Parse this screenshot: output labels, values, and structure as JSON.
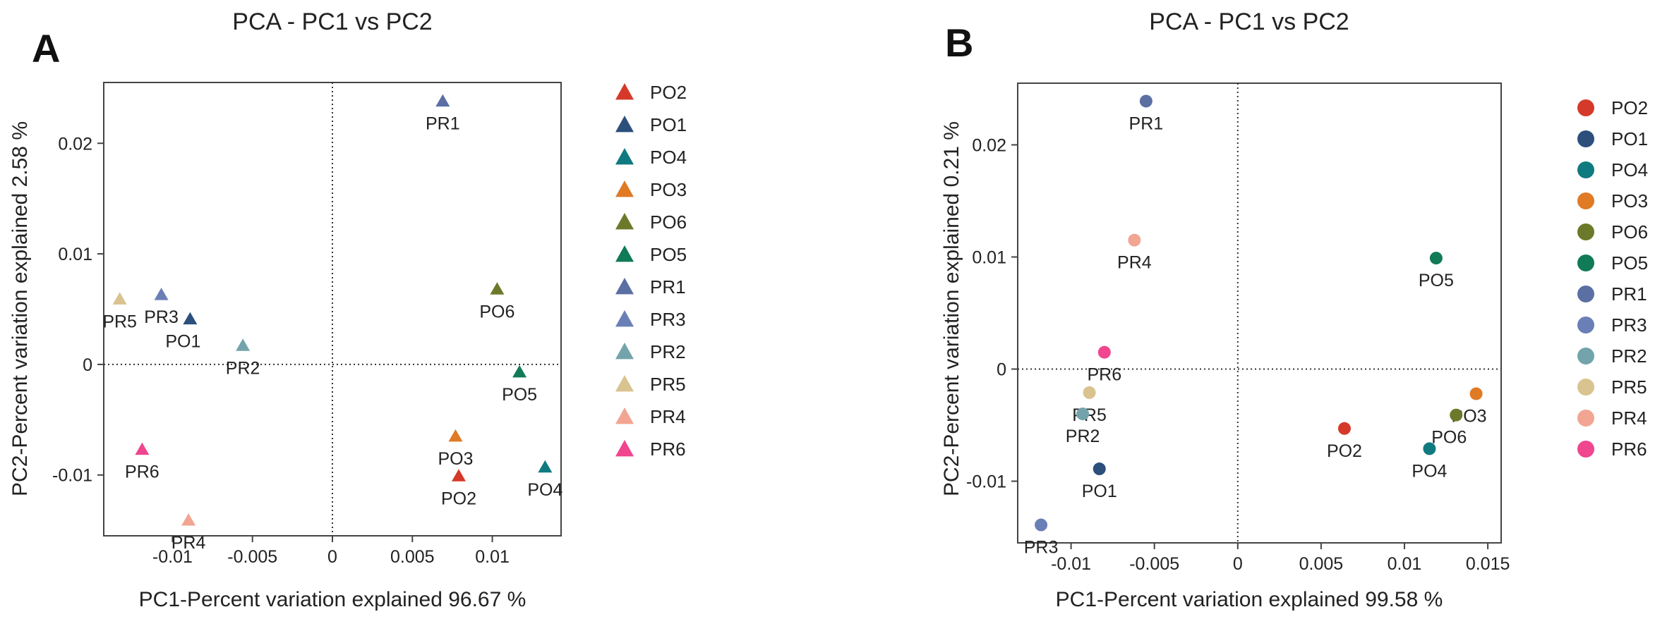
{
  "chart_data": [
    {
      "panel_label": "A",
      "type": "scatter",
      "marker": "triangle",
      "title": "PCA - PC1 vs PC2",
      "xlabel": "PC1-Percent variation explained 96.67 %",
      "ylabel": "PC2-Percent variation explained 2.58 %",
      "xlim": [
        -0.0143,
        0.0143
      ],
      "ylim": [
        -0.0155,
        0.0255
      ],
      "x_ticks": [
        -0.01,
        -0.005,
        0,
        0.005,
        0.01
      ],
      "x_tick_labels": [
        "-0.01",
        "-0.005",
        "0",
        "0.005",
        "0.01"
      ],
      "y_ticks": [
        -0.01,
        0,
        0.01,
        0.02
      ],
      "y_tick_labels": [
        "-0.01",
        "0",
        "0.01",
        "0.02"
      ],
      "legend": [
        "PO2",
        "PO1",
        "PO4",
        "PO3",
        "PO6",
        "PO5",
        "PR1",
        "PR3",
        "PR2",
        "PR5",
        "PR4",
        "PR6"
      ],
      "points": [
        {
          "label": "PR1",
          "x": 0.0069,
          "y": 0.0238,
          "color": "#5b6fa3",
          "label_pos": "below"
        },
        {
          "label": "PO6",
          "x": 0.0103,
          "y": 0.0068,
          "color": "#6b7a2a",
          "label_pos": "below"
        },
        {
          "label": "PR5",
          "x": -0.0133,
          "y": 0.0059,
          "color": "#d9c38e",
          "label_pos": "below"
        },
        {
          "label": "PR3",
          "x": -0.0107,
          "y": 0.0063,
          "color": "#6a7fb6",
          "label_pos": "below"
        },
        {
          "label": "PO1",
          "x": -0.0089,
          "y": 0.0041,
          "color": "#2c4f7c",
          "label_pos": "below-left"
        },
        {
          "label": "PR2",
          "x": -0.0056,
          "y": 0.0017,
          "color": "#73a4ab",
          "label_pos": "below"
        },
        {
          "label": "PO5",
          "x": 0.0117,
          "y": -0.0007,
          "color": "#117a56",
          "label_pos": "below"
        },
        {
          "label": "PR6",
          "x": -0.0119,
          "y": -0.0077,
          "color": "#f0458f",
          "label_pos": "below"
        },
        {
          "label": "PO3",
          "x": 0.0077,
          "y": -0.0065,
          "color": "#e07a25",
          "label_pos": "below"
        },
        {
          "label": "PO4",
          "x": 0.0133,
          "y": -0.0093,
          "color": "#0f7a80",
          "label_pos": "below"
        },
        {
          "label": "PO2",
          "x": 0.0079,
          "y": -0.0101,
          "color": "#d5392a",
          "label_pos": "below"
        },
        {
          "label": "PR4",
          "x": -0.009,
          "y": -0.0141,
          "color": "#f2a592",
          "label_pos": "below"
        }
      ]
    },
    {
      "panel_label": "B",
      "type": "scatter",
      "marker": "circle",
      "title": "PCA - PC1 vs PC2",
      "xlabel": "PC1-Percent variation explained 99.58 %",
      "ylabel": "PC2-Percent variation explained 0.21 %",
      "xlim": [
        -0.0132,
        0.0158
      ],
      "ylim": [
        -0.0155,
        0.0255
      ],
      "x_ticks": [
        -0.01,
        -0.005,
        0,
        0.005,
        0.01,
        0.015
      ],
      "x_tick_labels": [
        "-0.01",
        "-0.005",
        "0",
        "0.005",
        "0.01",
        "0.015"
      ],
      "y_ticks": [
        -0.01,
        0,
        0.01,
        0.02
      ],
      "y_tick_labels": [
        "-0.01",
        "0",
        "0.01",
        "0.02"
      ],
      "legend": [
        "PO2",
        "PO1",
        "PO4",
        "PO3",
        "PO6",
        "PO5",
        "PR1",
        "PR3",
        "PR2",
        "PR5",
        "PR4",
        "PR6"
      ],
      "points": [
        {
          "label": "PR1",
          "x": -0.0055,
          "y": 0.0239,
          "color": "#5b6fa3",
          "label_pos": "below"
        },
        {
          "label": "PR4",
          "x": -0.0062,
          "y": 0.0115,
          "color": "#f2a592",
          "label_pos": "below"
        },
        {
          "label": "PO5",
          "x": 0.0119,
          "y": 0.0099,
          "color": "#117a56",
          "label_pos": "below"
        },
        {
          "label": "PR6",
          "x": -0.008,
          "y": 0.0015,
          "color": "#f0458f",
          "label_pos": "below"
        },
        {
          "label": "PR5",
          "x": -0.0089,
          "y": -0.0021,
          "color": "#d9c38e",
          "label_pos": "below"
        },
        {
          "label": "PR2",
          "x": -0.0093,
          "y": -0.004,
          "color": "#73a4ab",
          "label_pos": "below"
        },
        {
          "label": "PO3",
          "x": 0.0143,
          "y": -0.0022,
          "color": "#e07a25",
          "label_pos": "below-left"
        },
        {
          "label": "PO6",
          "x": 0.0131,
          "y": -0.0041,
          "color": "#6b7a2a",
          "label_pos": "below-left"
        },
        {
          "label": "PO2",
          "x": 0.0064,
          "y": -0.0053,
          "color": "#d5392a",
          "label_pos": "below"
        },
        {
          "label": "PO4",
          "x": 0.0115,
          "y": -0.0071,
          "color": "#0f7a80",
          "label_pos": "below"
        },
        {
          "label": "PO1",
          "x": -0.0083,
          "y": -0.0089,
          "color": "#2c4f7c",
          "label_pos": "below"
        },
        {
          "label": "PR3",
          "x": -0.0118,
          "y": -0.0139,
          "color": "#6a7fb6",
          "label_pos": "below"
        }
      ]
    }
  ],
  "legend_colors": {
    "PO2": "#d5392a",
    "PO1": "#2c4f7c",
    "PO4": "#0f7a80",
    "PO3": "#e07a25",
    "PO6": "#6b7a2a",
    "PO5": "#117a56",
    "PR1": "#5b6fa3",
    "PR3": "#6a7fb6",
    "PR2": "#73a4ab",
    "PR5": "#d9c38e",
    "PR4": "#f2a592",
    "PR6": "#f0458f"
  }
}
